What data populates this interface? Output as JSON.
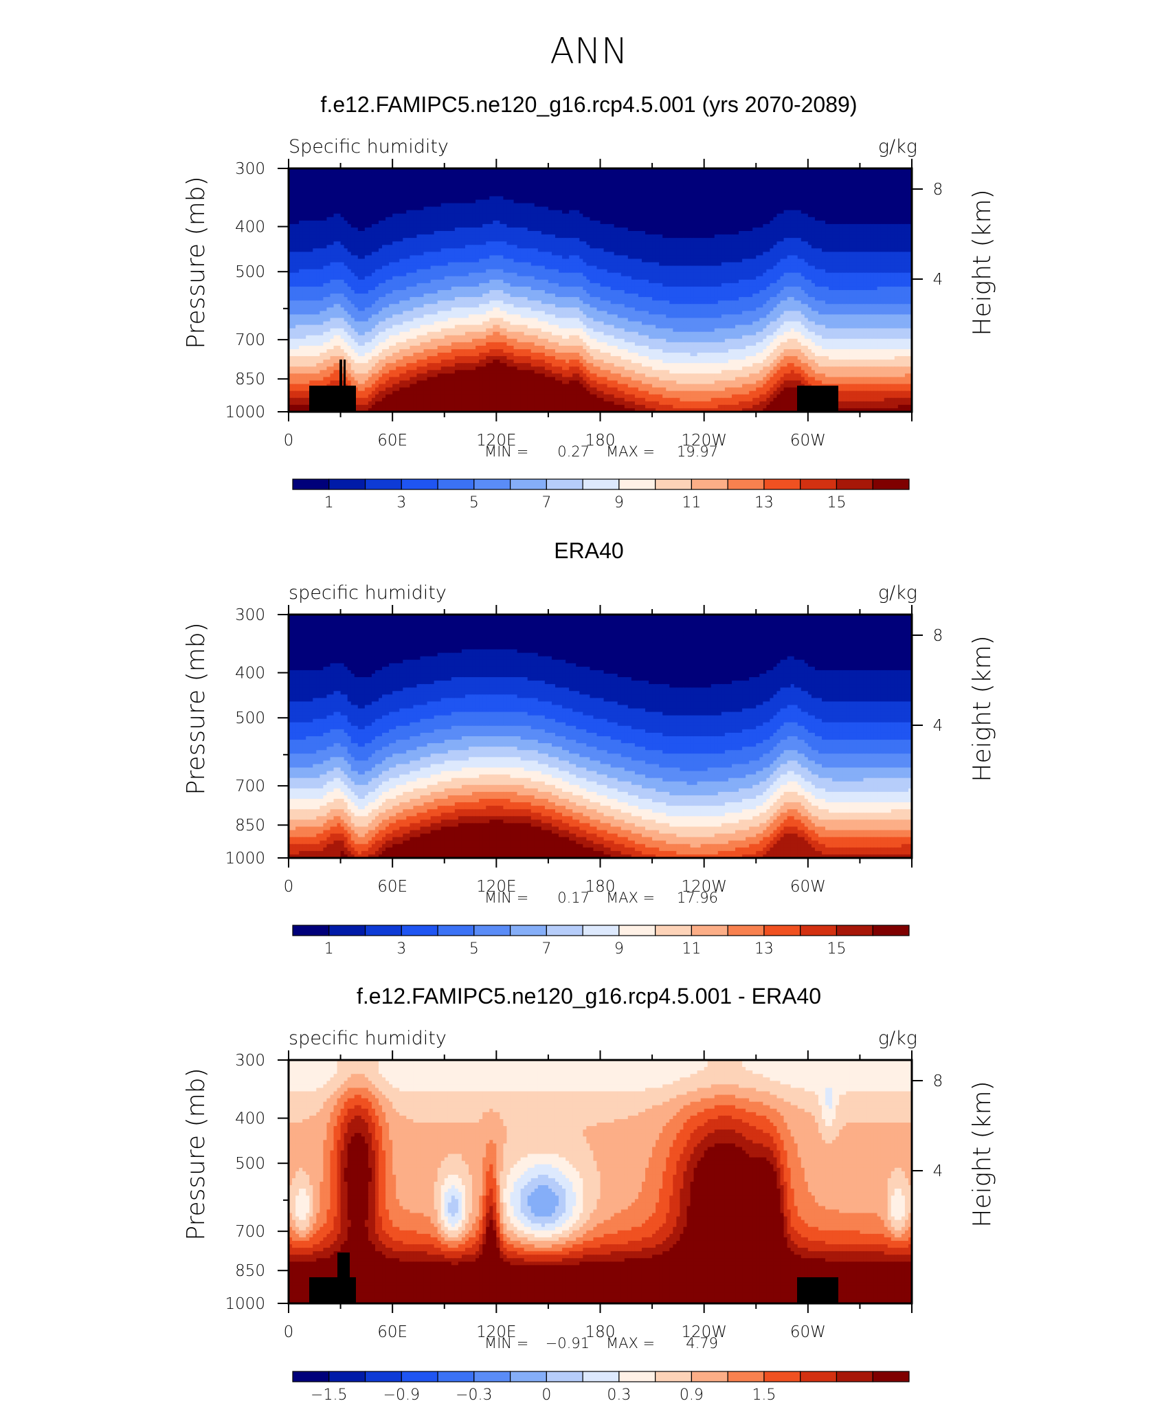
{
  "page_title": "ANN",
  "colorbar_ticks_abs": [
    "1",
    "3",
    "5",
    "7",
    "9",
    "11",
    "13",
    "15"
  ],
  "colorbar_ticks_diff": [
    "−1.5",
    "−0.9",
    "−0.3",
    "0",
    "0.3",
    "0.9",
    "1.5"
  ],
  "colors_abs": [
    "#00007a",
    "#001ba8",
    "#0e3bd6",
    "#1f55f2",
    "#3b72f5",
    "#5a8cf7",
    "#85aef8",
    "#b6cdfa",
    "#dde9fd",
    "#fff1e6",
    "#fdd3b8",
    "#fcae87",
    "#f8814f",
    "#f05121",
    "#d33111",
    "#a71708",
    "#7f0000"
  ],
  "colors_diff": [
    "#00007a",
    "#001ba8",
    "#0e3bd6",
    "#1f55f2",
    "#3b72f5",
    "#5a8cf7",
    "#85aef8",
    "#b6cdfa",
    "#dde9fd",
    "#fff1e6",
    "#fdd3b8",
    "#fcae87",
    "#f8814f",
    "#f05121",
    "#d33111",
    "#a71708",
    "#7f0000"
  ],
  "chart_data": [
    {
      "type": "heatmap",
      "title": "f.e12.FAMIPC5.ne120_g16.rcp4.5.001 (yrs 2070-2089)",
      "left_label": "Specific humidity",
      "right_label": "g/kg",
      "ylabel": "Pressure (mb)",
      "ylabel_right": "Height (km)",
      "x_ticks": [
        "0",
        "60E",
        "120E",
        "180",
        "120W",
        "60W"
      ],
      "y_ticks": [
        "300",
        "400",
        "500",
        "700",
        "850",
        "1000"
      ],
      "y_right_ticks": [
        "8",
        "4"
      ],
      "stats": {
        "min_label": "MIN =",
        "min": "0.27",
        "max_label": "MAX =",
        "max": "19.97"
      },
      "colorbar_levels": [
        1,
        3,
        5,
        7,
        9,
        11,
        13,
        15
      ]
    },
    {
      "type": "heatmap",
      "title": "ERA40",
      "left_label": "specific humidity",
      "right_label": "g/kg",
      "ylabel": "Pressure (mb)",
      "ylabel_right": "Height (km)",
      "x_ticks": [
        "0",
        "60E",
        "120E",
        "180",
        "120W",
        "60W"
      ],
      "y_ticks": [
        "300",
        "400",
        "500",
        "700",
        "850",
        "1000"
      ],
      "y_right_ticks": [
        "8",
        "4"
      ],
      "stats": {
        "min_label": "MIN =",
        "min": "0.17",
        "max_label": "MAX =",
        "max": "17.96"
      },
      "colorbar_levels": [
        1,
        3,
        5,
        7,
        9,
        11,
        13,
        15
      ]
    },
    {
      "type": "heatmap",
      "title": "f.e12.FAMIPC5.ne120_g16.rcp4.5.001 - ERA40",
      "left_label": "specific humidity",
      "right_label": "g/kg",
      "ylabel": "Pressure (mb)",
      "ylabel_right": "Height (km)",
      "x_ticks": [
        "0",
        "60E",
        "120E",
        "180",
        "120W",
        "60W"
      ],
      "y_ticks": [
        "300",
        "400",
        "500",
        "700",
        "850",
        "1000"
      ],
      "y_right_ticks": [
        "8",
        "4"
      ],
      "stats": {
        "min_label": "MIN =",
        "min": "−0.91",
        "max_label": "MAX =",
        "max": "4.79"
      },
      "colorbar_levels": [
        -1.5,
        -0.9,
        -0.3,
        0,
        0.3,
        0.9,
        1.5
      ]
    }
  ]
}
